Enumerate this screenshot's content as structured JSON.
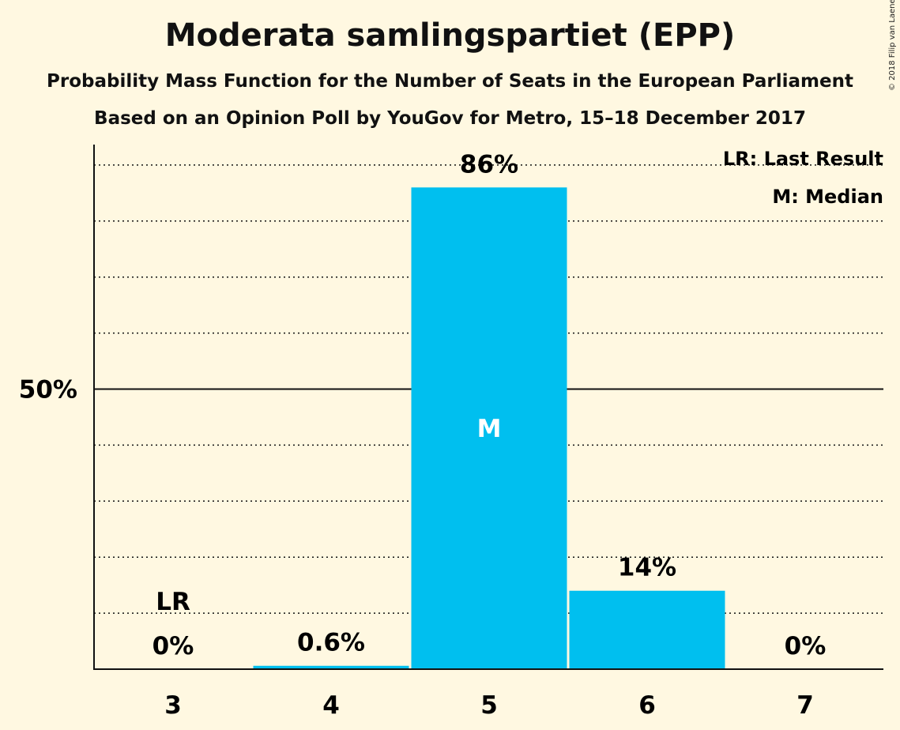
{
  "title": "Moderata samlingspartiet (EPP)",
  "subtitle": "Probability Mass Function for the Number of Seats in the European Parliament",
  "subtitle2": "Based on an Opinion Poll by YouGov for Metro, 15–18 December 2017",
  "copyright": "© 2018 Filip van Laenen",
  "legend": {
    "last_result": "LR: Last Result",
    "median": "M: Median"
  },
  "colors": {
    "background": "#FFF8E1",
    "bar": "#00BFEF",
    "text": "#111111"
  },
  "chart_data": {
    "type": "bar",
    "categories": [
      "3",
      "4",
      "5",
      "6",
      "7"
    ],
    "values": [
      0,
      0.6,
      86,
      14,
      0
    ],
    "value_labels": [
      "0%",
      "0.6%",
      "86%",
      "14%",
      "0%"
    ],
    "markers": [
      {
        "category": "3",
        "label": "LR"
      },
      {
        "category": "5",
        "label": "M"
      }
    ],
    "yticks": [
      {
        "value": 50,
        "label": "50%"
      }
    ],
    "ylim": [
      0,
      94
    ],
    "grid": true,
    "legend_position": "top-right"
  }
}
